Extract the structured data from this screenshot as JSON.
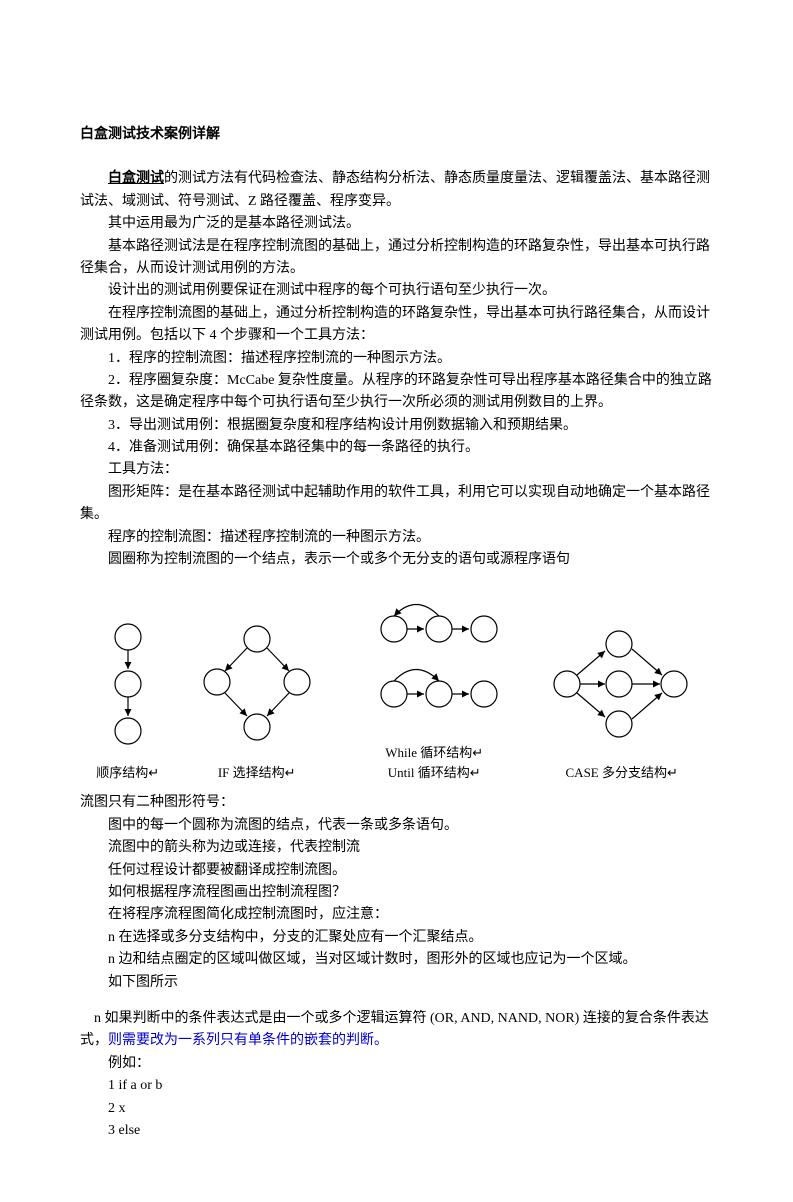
{
  "title": "白盒测试技术案例详解",
  "p1_prefix": "白盒测试",
  "p1_suffix": "的测试方法有代码检查法、静态结构分析法、静态质量度量法、逻辑覆盖法、基本路径测试法、域测试、符号测试、Z 路径覆盖、程序变异。",
  "p2": "其中运用最为广泛的是基本路径测试法。",
  "p3": "基本路径测试法是在程序控制流图的基础上，通过分析控制构造的环路复杂性，导出基本可执行路径集合，从而设计测试用例的方法。",
  "p4": "设计出的测试用例要保证在测试中程序的每个可执行语句至少执行一次。",
  "p5": "在程序控制流图的基础上，通过分析控制构造的环路复杂性，导出基本可执行路径集合，从而设计测试用例。包括以下 4 个步骤和一个工具方法：",
  "p6": "1．程序的控制流图：描述程序控制流的一种图示方法。",
  "p7": "2．程序圈复杂度：McCabe 复杂性度量。从程序的环路复杂性可导出程序基本路径集合中的独立路径条数，这是确定程序中每个可执行语句至少执行一次所必须的测试用例数目的上界。",
  "p8": "3．导出测试用例：根据圈复杂度和程序结构设计用例数据输入和预期结果。",
  "p9": "4．准备测试用例：确保基本路径集中的每一条路径的执行。",
  "p10": "工具方法：",
  "p11": "图形矩阵：是在基本路径测试中起辅助作用的软件工具，利用它可以实现自动地确定一个基本路径集。",
  "p12": "程序的控制流图：描述程序控制流的一种图示方法。",
  "p13": "圆圈称为控制流图的一个结点，表示一个或多个无分支的语句或源程序语句",
  "diagram": {
    "labels": {
      "seq": "顺序结构",
      "if": "IF 选择结构",
      "while_until": "While 循环结构\nUntil 循环结构",
      "case": "CASE 多分支结构"
    },
    "symbol": "↵",
    "stroke": "#000000",
    "fill": "#ffffff",
    "stroke_width": 1.2
  },
  "p14": "流图只有二种图形符号：",
  "p15": "图中的每一个圆称为流图的结点，代表一条或多条语句。",
  "p16": "流图中的箭头称为边或连接，代表控制流",
  "p17": "任何过程设计都要被翻译成控制流图。",
  "p18": "如何根据程序流程图画出控制流程图？",
  "p19": "在将程序流程图简化成控制流图时，应注意：",
  "p20": "n 在选择或多分支结构中，分支的汇聚处应有一个汇聚结点。",
  "p21": "n 边和结点圈定的区域叫做区域，当对区域计数时，图形外的区域也应记为一个区域。",
  "p22": "如下图所示",
  "p23_prefix": "n 如果判断中的条件表达式是由一个或多个逻辑运算符 (OR, AND, NAND, NOR) 连接的复合条件表达式，",
  "p23_link": "则需要改为一系列只有单条件的嵌套的判断。",
  "p24": "例如：",
  "p25": "1 if a or b",
  "p26": "2 x",
  "p27": "3 else"
}
